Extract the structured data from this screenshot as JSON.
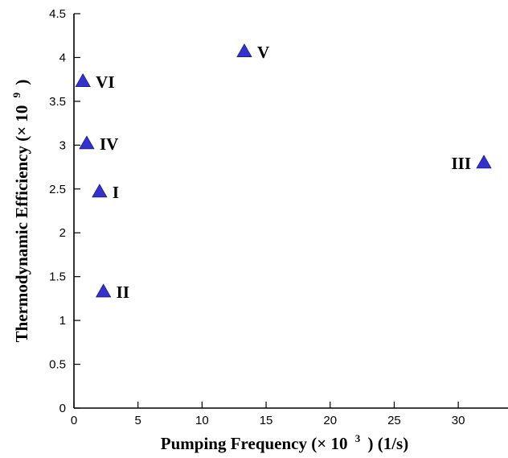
{
  "chart_data": {
    "type": "scatter",
    "xlabel": {
      "main": "Pumping Frequency (× 10",
      "exponent": "3",
      "suffix": ") (1/s)"
    },
    "ylabel": {
      "main": "Thermodynamic Efficiency (× 10",
      "exponent": "9",
      "suffix": ")"
    },
    "xlim": [
      0,
      32
    ],
    "ylim": [
      0,
      4.5
    ],
    "xticks": [
      0,
      5,
      10,
      15,
      20,
      25,
      30
    ],
    "yticks": [
      0,
      0.5,
      1,
      1.5,
      2,
      2.5,
      3,
      3.5,
      4,
      4.5
    ],
    "grid": false,
    "marker": "triangle",
    "marker_color": "#3333cc",
    "points": [
      {
        "label": "I",
        "x": 2.0,
        "y": 2.47
      },
      {
        "label": "II",
        "x": 2.3,
        "y": 1.33
      },
      {
        "label": "III",
        "x": 32.0,
        "y": 2.8
      },
      {
        "label": "IV",
        "x": 1.0,
        "y": 3.02
      },
      {
        "label": "V",
        "x": 13.3,
        "y": 4.07
      },
      {
        "label": "VI",
        "x": 0.7,
        "y": 3.73
      }
    ]
  }
}
